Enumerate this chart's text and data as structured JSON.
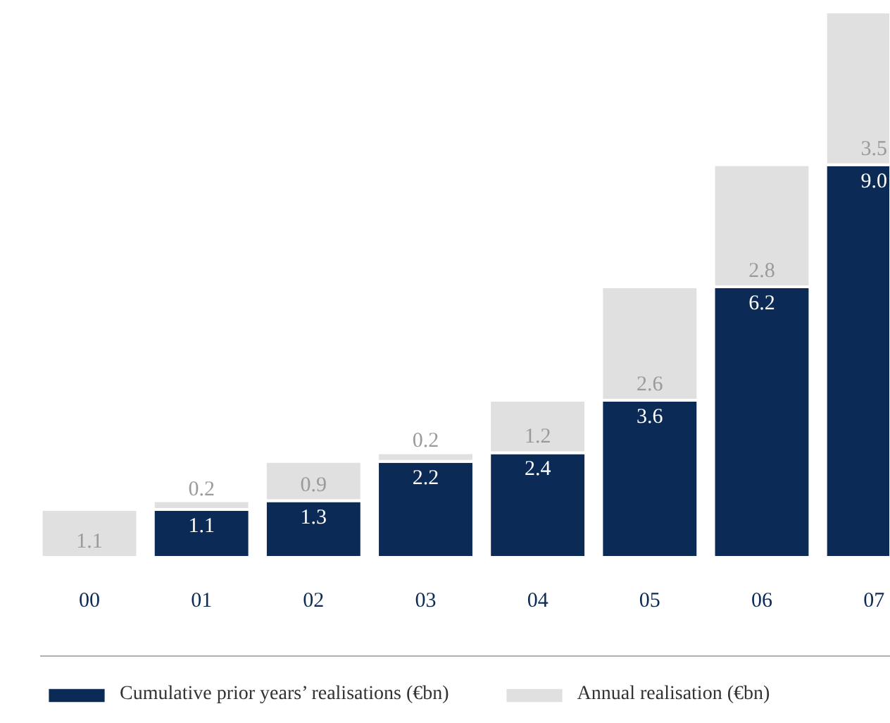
{
  "chart_data": {
    "type": "bar",
    "stacked": true,
    "legend": "bottom",
    "grid": false,
    "categories": [
      "00",
      "01",
      "02",
      "03",
      "04",
      "05",
      "06",
      "07"
    ],
    "series": [
      {
        "name": "Cumulative prior years’ realisations (€bn)",
        "color": "#0b2a55",
        "values": [
          null,
          1.1,
          1.3,
          2.2,
          2.4,
          3.6,
          6.2,
          9.0
        ],
        "value_labels": [
          null,
          "1.1",
          "1.3",
          "2.2",
          "2.4",
          "3.6",
          "6.2",
          "9.0"
        ]
      },
      {
        "name": "Annual realisation (€bn)",
        "color": "#e0e0e0",
        "values": [
          1.1,
          0.2,
          0.9,
          0.2,
          1.2,
          2.6,
          2.8,
          3.5
        ],
        "value_labels": [
          "1.1",
          "0.2",
          "0.9",
          "0.2",
          "1.2",
          "2.6",
          "2.8",
          "3.5"
        ]
      }
    ]
  }
}
